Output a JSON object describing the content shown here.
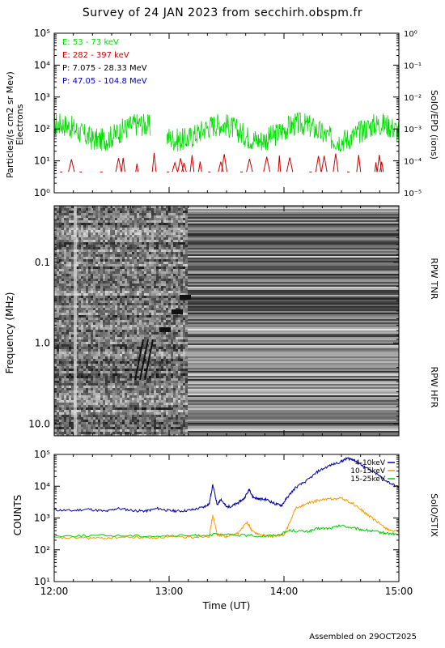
{
  "title": "Survey of 24 JAN 2023 from secchirh.obspm.fr",
  "footer": "Assembled on 29OCT2025",
  "colors": {
    "green": "#00dd00",
    "red": "#cc0000",
    "black": "#000000",
    "blue": "#0000cc",
    "orange": "#ff9900",
    "navy": "#0000aa"
  },
  "chart_data": [
    {
      "type": "line",
      "panel": "SolO/EPD",
      "ylabel": "Particles/(s cm2 sr Mev)",
      "ylabel2": "Electrons",
      "right_label": "SoIO/EPD (ions)",
      "yscale": "log",
      "ylim": [
        1,
        100000
      ],
      "y_ticks": [
        {
          "value": 1,
          "label": "10⁰"
        },
        {
          "value": 10,
          "label": "10¹"
        },
        {
          "value": 100,
          "label": "10²"
        },
        {
          "value": 1000,
          "label": "10³"
        },
        {
          "value": 10000,
          "label": "10⁴"
        },
        {
          "value": 100000,
          "label": "10⁵"
        }
      ],
      "y2_ticks": [
        {
          "value": 1e-05,
          "label": "10⁻⁵"
        },
        {
          "value": 0.0001,
          "label": "10⁻⁴"
        },
        {
          "value": 0.001,
          "label": "10⁻³"
        },
        {
          "value": 0.01,
          "label": "10⁻²"
        },
        {
          "value": 0.1,
          "label": "10⁻¹"
        },
        {
          "value": 1,
          "label": "10⁰"
        }
      ],
      "xlim_hours": [
        12,
        15
      ],
      "legend": [
        {
          "name": "E: 53 - 73 keV",
          "color": "#00dd00"
        },
        {
          "name": "E: 282 - 397 keV",
          "color": "#cc0000"
        },
        {
          "name": "P: 7.075 - 28.33 MeV",
          "color": "#000000"
        },
        {
          "name": "P: 47.05 - 104.8 MeV",
          "color": "#0000cc"
        }
      ],
      "series": [
        {
          "name": "E: 53 - 73 keV",
          "color": "#00dd00",
          "level": 80,
          "gaps_hours": [
            [
              12.84,
              12.98
            ]
          ]
        },
        {
          "name": "E: 282 - 397 keV",
          "color": "#cc0000",
          "level": 8,
          "bursts_hours": [
            12.15,
            12.56,
            12.6,
            12.72,
            12.87,
            13.05,
            13.1,
            13.13,
            13.2,
            13.27,
            13.45,
            13.48,
            13.7,
            13.85,
            13.96,
            14.05,
            14.3,
            14.35,
            14.45,
            14.65,
            14.8,
            14.83,
            14.85
          ]
        }
      ]
    },
    {
      "type": "heatmap",
      "panel": "RPW",
      "ylabel": "Frequency (MHz)",
      "right_labels": [
        "RPW TNR",
        "RPW HFR"
      ],
      "yscale": "log",
      "ylim": [
        14,
        0.02
      ],
      "y_ticks": [
        {
          "value": 0.1,
          "label": "0.1"
        },
        {
          "value": 1.0,
          "label": "1.0"
        },
        {
          "value": 10.0,
          "label": "10.0"
        }
      ],
      "xlim_hours": [
        12,
        15
      ],
      "data_end_hours": 13.16,
      "colormap": "grayscale"
    },
    {
      "type": "line",
      "panel": "SolO/STIX",
      "ylabel": "COUNTS",
      "right_label": "SoIO/STIX",
      "xlabel": "Time (UT)",
      "yscale": "log",
      "ylim": [
        10,
        100000
      ],
      "y_ticks": [
        {
          "value": 10,
          "label": "10¹"
        },
        {
          "value": 100,
          "label": "10²"
        },
        {
          "value": 1000,
          "label": "10³"
        },
        {
          "value": 10000,
          "label": "10⁴"
        },
        {
          "value": 100000,
          "label": "10⁵"
        }
      ],
      "xlim_hours": [
        12,
        15
      ],
      "x_ticks": [
        {
          "value": 12,
          "label": "12:00"
        },
        {
          "value": 13,
          "label": "13:00"
        },
        {
          "value": 14,
          "label": "14:00"
        },
        {
          "value": 15,
          "label": "15:00"
        }
      ],
      "series": [
        {
          "name": "4-10keV",
          "color": "#0000aa",
          "x": [
            12.0,
            12.15,
            12.3,
            12.45,
            12.55,
            12.7,
            12.8,
            12.9,
            13.0,
            13.1,
            13.2,
            13.3,
            13.35,
            13.38,
            13.42,
            13.45,
            13.5,
            13.55,
            13.6,
            13.65,
            13.7,
            13.73,
            13.78,
            13.85,
            13.92,
            13.98,
            14.03,
            14.1,
            14.2,
            14.3,
            14.4,
            14.5,
            14.55,
            14.6,
            14.65,
            14.7,
            14.8,
            14.9,
            15.0
          ],
          "y": [
            1800,
            1700,
            1900,
            1600,
            2000,
            1700,
            1650,
            2000,
            1700,
            1650,
            1800,
            2200,
            2800,
            11000,
            2500,
            4000,
            2200,
            2400,
            3000,
            4000,
            8000,
            4500,
            4000,
            3800,
            2800,
            2500,
            4500,
            9000,
            15000,
            30000,
            45000,
            60000,
            75000,
            70000,
            55000,
            40000,
            25000,
            14000,
            9000
          ]
        },
        {
          "name": "10-15keV",
          "color": "#ff9900",
          "x": [
            12.0,
            12.2,
            12.4,
            12.6,
            12.8,
            13.0,
            13.2,
            13.35,
            13.38,
            13.42,
            13.5,
            13.6,
            13.68,
            13.72,
            13.78,
            13.9,
            14.0,
            14.05,
            14.1,
            14.2,
            14.3,
            14.4,
            14.5,
            14.6,
            14.7,
            14.8,
            14.9,
            15.0
          ],
          "y": [
            230,
            240,
            230,
            250,
            240,
            250,
            250,
            270,
            1200,
            300,
            260,
            330,
            750,
            400,
            300,
            260,
            300,
            700,
            2000,
            2800,
            3600,
            4000,
            4200,
            2800,
            1500,
            800,
            450,
            350
          ]
        },
        {
          "name": "15-25keV",
          "color": "#00cc00",
          "x": [
            12.0,
            12.3,
            12.6,
            12.9,
            13.2,
            13.4,
            13.6,
            13.8,
            13.95,
            14.05,
            14.2,
            14.3,
            14.4,
            14.5,
            14.6,
            14.7,
            14.8,
            14.9,
            15.0
          ],
          "y": [
            270,
            280,
            280,
            270,
            280,
            300,
            290,
            270,
            290,
            410,
            370,
            470,
            470,
            580,
            480,
            420,
            370,
            330,
            300
          ]
        }
      ]
    }
  ]
}
